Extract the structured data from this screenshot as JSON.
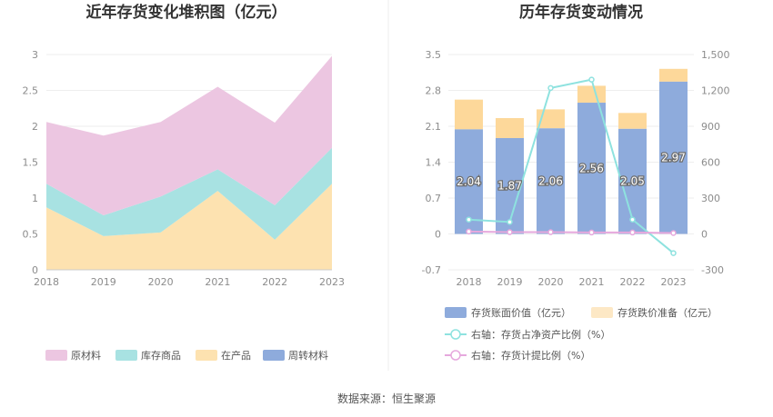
{
  "source_label": "数据来源：恒生聚源",
  "colors": {
    "raw_material": "#ecc6e1",
    "inventory_goods": "#a8e2e2",
    "wip": "#fde2b0",
    "turnover": "#8eabdc",
    "bar_book": "#8eabdc",
    "bar_reserve": "#fdd89a",
    "line_ratio": "#8ee2df",
    "line_provision": "#e6a8dd"
  },
  "chart_data": [
    {
      "type": "area",
      "title": "近年存货变化堆积图（亿元）",
      "categories": [
        "2018",
        "2019",
        "2020",
        "2021",
        "2022",
        "2023"
      ],
      "y_ticks": [
        "0",
        "0.5",
        "1",
        "1.5",
        "2",
        "2.5",
        "3"
      ],
      "ylim": [
        0,
        3
      ],
      "stacked": true,
      "series": [
        {
          "name": "在产品",
          "key": "wip",
          "values": [
            0.87,
            0.47,
            0.52,
            1.1,
            0.42,
            1.2
          ]
        },
        {
          "name": "库存商品",
          "key": "inventory_goods",
          "values": [
            0.33,
            0.29,
            0.5,
            0.3,
            0.48,
            0.5
          ]
        },
        {
          "name": "原材料",
          "key": "raw_material",
          "values": [
            0.86,
            1.11,
            1.04,
            1.15,
            1.15,
            1.28
          ]
        },
        {
          "name": "周转材料",
          "key": "turnover",
          "values": [
            0,
            0,
            0,
            0,
            0,
            0
          ]
        }
      ],
      "legend": [
        {
          "name": "原材料",
          "key": "raw_material"
        },
        {
          "name": "库存商品",
          "key": "inventory_goods"
        },
        {
          "name": "在产品",
          "key": "wip"
        },
        {
          "name": "周转材料",
          "key": "turnover"
        }
      ],
      "legend_position": "bottom"
    },
    {
      "type": "bar",
      "title": "历年存货变动情况",
      "categories": [
        "2018",
        "2019",
        "2020",
        "2021",
        "2022",
        "2023"
      ],
      "left_ticks": [
        "-0.7",
        "0",
        "0.7",
        "1.4",
        "2.1",
        "2.8",
        "3.5"
      ],
      "right_ticks": [
        "-300",
        "0",
        "300",
        "600",
        "900",
        "1,200",
        "1,500"
      ],
      "ylim_left": [
        -0.7,
        3.5
      ],
      "ylim_right": [
        -300,
        1500
      ],
      "bars": [
        {
          "name": "存货账面价值（亿元）",
          "key": "bar_book",
          "values": [
            2.04,
            1.87,
            2.06,
            2.56,
            2.05,
            2.97
          ],
          "labels": [
            "2.04",
            "1.87",
            "2.06",
            "2.56",
            "2.05",
            "2.97"
          ]
        },
        {
          "name": "存货跌价准备（亿元）",
          "key": "bar_reserve",
          "values": [
            0.58,
            0.39,
            0.37,
            0.33,
            0.31,
            0.25
          ]
        }
      ],
      "lines": [
        {
          "name": "右轴：存货占净资产比例（%）",
          "key": "line_ratio",
          "values": [
            120,
            100,
            1220,
            1290,
            120,
            -160
          ]
        },
        {
          "name": "右轴：存货计提比例（%）",
          "key": "line_provision",
          "values": [
            20,
            15,
            15,
            12,
            12,
            8
          ]
        }
      ],
      "legend_position": "bottom"
    }
  ]
}
